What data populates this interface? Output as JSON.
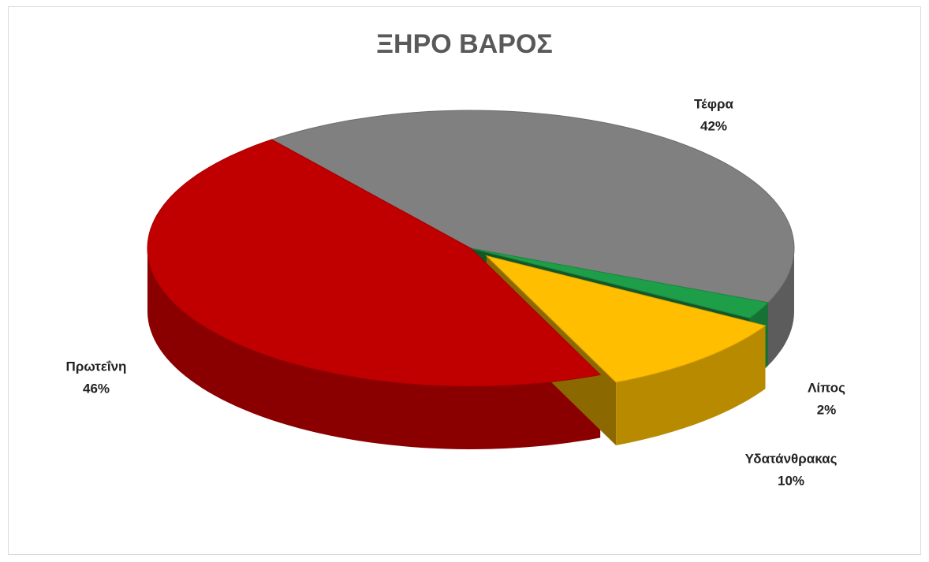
{
  "chart_data": {
    "type": "pie",
    "title": "ΞΗΡΟ ΒΑΡΟΣ",
    "categories": [
      "Τέφρα",
      "Λίπος",
      "Υδατάνθρακας",
      "Πρωτεΐνη"
    ],
    "values": [
      42,
      2,
      10,
      46
    ],
    "value_labels": [
      "42%",
      "2%",
      "10%",
      "46%"
    ],
    "colors": [
      "#808080",
      "#1e9e48",
      "#ffbf00",
      "#c00000"
    ]
  }
}
